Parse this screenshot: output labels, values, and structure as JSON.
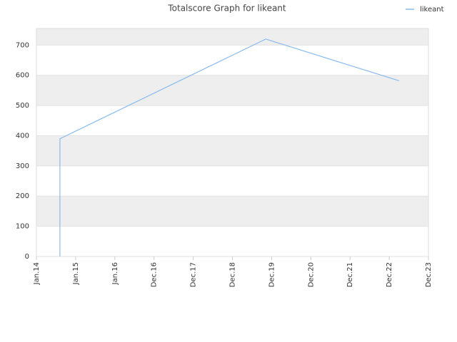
{
  "chart_data": {
    "type": "line",
    "title": "Totalscore Graph for likeant",
    "x": [
      0.6,
      0.6,
      5.85,
      9.25
    ],
    "series": [
      {
        "name": "likeant",
        "color": "#88bbee",
        "values": [
          0,
          390,
          720,
          582
        ]
      }
    ],
    "xlim": [
      0,
      10
    ],
    "xticks": [
      {
        "value": 0,
        "label": "Jan.14"
      },
      {
        "value": 1,
        "label": "Jan.15"
      },
      {
        "value": 2,
        "label": "Jan.16"
      },
      {
        "value": 3,
        "label": "Dec.16"
      },
      {
        "value": 4,
        "label": "Dec.17"
      },
      {
        "value": 5,
        "label": "Dec.18"
      },
      {
        "value": 6,
        "label": "Dec.19"
      },
      {
        "value": 7,
        "label": "Dec.20"
      },
      {
        "value": 8,
        "label": "Dec.21"
      },
      {
        "value": 9,
        "label": "Dec.22"
      },
      {
        "value": 10,
        "label": "Dec.23"
      }
    ],
    "ylim": [
      0,
      755
    ],
    "yticks": [
      0,
      100,
      200,
      300,
      400,
      500,
      600,
      700
    ],
    "grid": true,
    "legend": "top-right"
  }
}
